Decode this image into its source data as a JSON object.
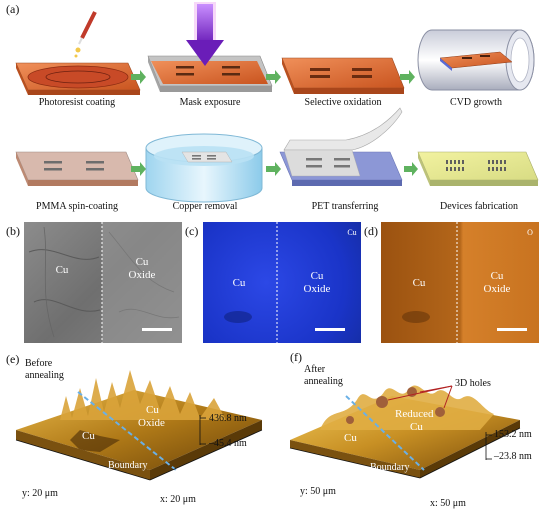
{
  "panel_a": {
    "letter": "(a)",
    "steps": [
      "Photoresist coating",
      "Mask exposure",
      "Selective oxidation",
      "CVD growth",
      "PMMA spin-coating",
      "Copper removal",
      "PET transferring",
      "Devices fabrication"
    ]
  },
  "panel_b": {
    "letter": "(b)",
    "left": "Cu",
    "right_1": "Cu",
    "right_2": "Oxide"
  },
  "panel_c": {
    "letter": "(c)",
    "left": "Cu",
    "right_1": "Cu",
    "right_2": "Oxide",
    "corner": "Cu"
  },
  "panel_d": {
    "letter": "(d)",
    "left": "Cu",
    "right_1": "Cu",
    "right_2": "Oxide",
    "corner": "O"
  },
  "panel_e": {
    "letter": "(e)",
    "title_1": "Before",
    "title_2": "annealing",
    "region_cu": "Cu",
    "region_oxide_1": "Cu",
    "region_oxide_2": "Oxide",
    "boundary": "Boundary",
    "zmax": "436.8 nm",
    "zmin": "–45.4 nm",
    "y_axis": "y: 20 μm",
    "x_axis": "x: 20 μm"
  },
  "panel_f": {
    "letter": "(f)",
    "title_1": "After",
    "title_2": "annealing",
    "holes": "3D holes",
    "region_cu": "Cu",
    "region_reduced_1": "Reduced",
    "region_reduced_2": "Cu",
    "boundary": "Boundary",
    "zmax": "153.2 nm",
    "zmin": "–23.8 nm",
    "y_axis": "y: 50 μm",
    "x_axis": "x: 50 μm"
  },
  "colors": {
    "copper": "#d9672c",
    "arrow_green": "#5fb25f",
    "mask_arrow": "#7b2bc4",
    "cu_map": "#1d38d8",
    "o_map": "#b76416",
    "afm_gold": "#c18a1c"
  }
}
